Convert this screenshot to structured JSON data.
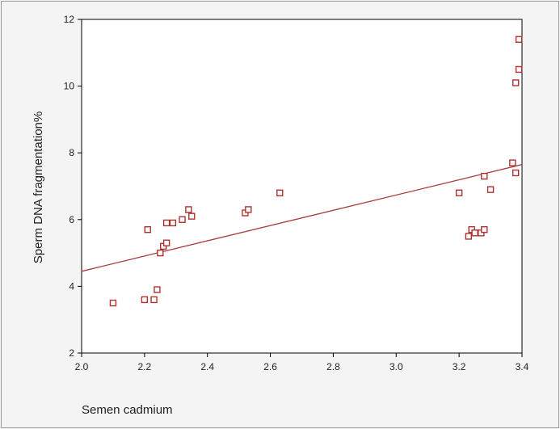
{
  "chart_data": {
    "type": "scatter",
    "title": "",
    "xlabel": "Semen cadmium",
    "ylabel": "Sperm DNA fragmentation%",
    "xlim": [
      2.0,
      3.4
    ],
    "ylim": [
      2,
      12
    ],
    "xticks": [
      "2.0",
      "2.2",
      "2.4",
      "2.6",
      "2.8",
      "3.0",
      "3.2",
      "3.4"
    ],
    "yticks": [
      "2",
      "4",
      "6",
      "8",
      "10",
      "12"
    ],
    "grid": false,
    "legend": "none",
    "points": [
      {
        "x": 2.1,
        "y": 3.5
      },
      {
        "x": 2.2,
        "y": 3.6
      },
      {
        "x": 2.23,
        "y": 3.6
      },
      {
        "x": 2.24,
        "y": 3.9
      },
      {
        "x": 2.21,
        "y": 5.7
      },
      {
        "x": 2.25,
        "y": 5.0
      },
      {
        "x": 2.26,
        "y": 5.2
      },
      {
        "x": 2.27,
        "y": 5.3
      },
      {
        "x": 2.27,
        "y": 5.9
      },
      {
        "x": 2.29,
        "y": 5.9
      },
      {
        "x": 2.32,
        "y": 6.0
      },
      {
        "x": 2.34,
        "y": 6.3
      },
      {
        "x": 2.35,
        "y": 6.1
      },
      {
        "x": 2.52,
        "y": 6.2
      },
      {
        "x": 2.53,
        "y": 6.3
      },
      {
        "x": 2.63,
        "y": 6.8
      },
      {
        "x": 3.2,
        "y": 6.8
      },
      {
        "x": 3.23,
        "y": 5.5
      },
      {
        "x": 3.24,
        "y": 5.7
      },
      {
        "x": 3.25,
        "y": 5.6
      },
      {
        "x": 3.27,
        "y": 5.6
      },
      {
        "x": 3.28,
        "y": 5.7
      },
      {
        "x": 3.28,
        "y": 7.3
      },
      {
        "x": 3.3,
        "y": 6.9
      },
      {
        "x": 3.37,
        "y": 7.7
      },
      {
        "x": 3.38,
        "y": 7.4
      },
      {
        "x": 3.38,
        "y": 10.1
      },
      {
        "x": 3.39,
        "y": 10.5
      },
      {
        "x": 3.39,
        "y": 11.4
      }
    ],
    "fit_line": {
      "x1": 2.0,
      "y1": 4.45,
      "x2": 3.4,
      "y2": 7.65
    },
    "colors": {
      "marker": "#b03030",
      "fit": "#a83a3a",
      "axis": "#000000"
    }
  }
}
